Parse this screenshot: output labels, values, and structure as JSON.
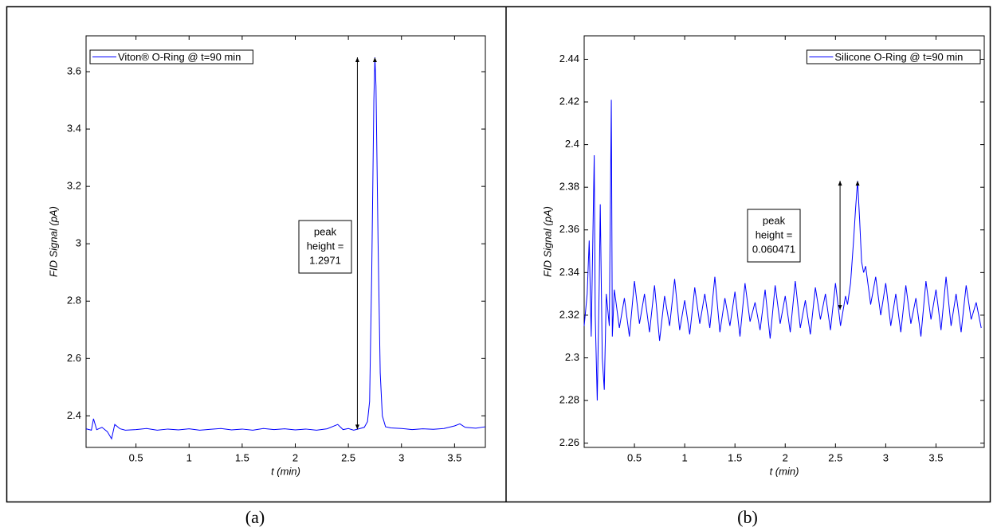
{
  "chart_data": [
    {
      "type": "line",
      "xlabel": "t (min)",
      "ylabel": "FID Signal (pA)",
      "legend": "upper-left",
      "xlim": [
        0.03,
        3.79
      ],
      "ylim": [
        2.29,
        3.725
      ],
      "xticks": [
        0.5,
        1,
        1.5,
        2,
        2.5,
        3,
        3.5
      ],
      "yticks": [
        2.4,
        2.6,
        2.8,
        3,
        3.2,
        3.4,
        3.6
      ],
      "x": [
        0.03,
        0.08,
        0.1,
        0.13,
        0.18,
        0.23,
        0.27,
        0.3,
        0.35,
        0.4,
        0.5,
        0.6,
        0.7,
        0.8,
        0.9,
        1.0,
        1.1,
        1.2,
        1.3,
        1.4,
        1.5,
        1.6,
        1.7,
        1.8,
        1.9,
        2.0,
        2.1,
        2.2,
        2.3,
        2.4,
        2.45,
        2.5,
        2.55,
        2.6,
        2.65,
        2.68,
        2.7,
        2.72,
        2.74,
        2.75,
        2.76,
        2.78,
        2.8,
        2.82,
        2.85,
        2.9,
        3.0,
        3.1,
        3.2,
        3.3,
        3.4,
        3.5,
        3.55,
        3.6,
        3.7,
        3.79
      ],
      "series": [
        {
          "name": "Viton® O-Ring @ t=90 min",
          "color": "#0000ff",
          "values": [
            2.355,
            2.35,
            2.39,
            2.352,
            2.36,
            2.345,
            2.32,
            2.37,
            2.355,
            2.35,
            2.352,
            2.356,
            2.35,
            2.354,
            2.351,
            2.355,
            2.35,
            2.353,
            2.356,
            2.351,
            2.354,
            2.35,
            2.356,
            2.352,
            2.355,
            2.351,
            2.354,
            2.35,
            2.355,
            2.37,
            2.352,
            2.356,
            2.35,
            2.355,
            2.36,
            2.38,
            2.45,
            2.9,
            3.5,
            3.65,
            3.55,
            3.0,
            2.55,
            2.4,
            2.362,
            2.358,
            2.356,
            2.352,
            2.355,
            2.353,
            2.356,
            2.365,
            2.372,
            2.36,
            2.357,
            2.362
          ]
        }
      ],
      "annotation": {
        "lines": [
          "peak",
          "height ="
        ],
        "value": 1.2971
      }
    },
    {
      "type": "line",
      "xlabel": "t (min)",
      "ylabel": "FID Signal (pA)",
      "legend": "upper-right",
      "xlim": [
        0,
        3.98
      ],
      "ylim": [
        2.258,
        2.451
      ],
      "xticks": [
        0.5,
        1,
        1.5,
        2,
        2.5,
        3,
        3.5
      ],
      "yticks": [
        2.26,
        2.28,
        2.3,
        2.32,
        2.34,
        2.36,
        2.38,
        2.4,
        2.42,
        2.44
      ],
      "x": [
        0,
        0.03,
        0.05,
        0.07,
        0.1,
        0.11,
        0.13,
        0.15,
        0.16,
        0.18,
        0.2,
        0.22,
        0.25,
        0.27,
        0.28,
        0.3,
        0.35,
        0.4,
        0.45,
        0.5,
        0.55,
        0.6,
        0.65,
        0.7,
        0.75,
        0.8,
        0.85,
        0.9,
        0.95,
        1,
        1.05,
        1.1,
        1.15,
        1.2,
        1.25,
        1.3,
        1.35,
        1.4,
        1.45,
        1.5,
        1.55,
        1.6,
        1.65,
        1.7,
        1.75,
        1.8,
        1.85,
        1.9,
        1.95,
        2,
        2.05,
        2.1,
        2.15,
        2.2,
        2.25,
        2.3,
        2.35,
        2.4,
        2.45,
        2.5,
        2.55,
        2.6,
        2.62,
        2.65,
        2.68,
        2.7,
        2.72,
        2.74,
        2.76,
        2.78,
        2.8,
        2.85,
        2.9,
        2.95,
        3,
        3.05,
        3.1,
        3.15,
        3.2,
        3.25,
        3.3,
        3.35,
        3.4,
        3.45,
        3.5,
        3.55,
        3.6,
        3.65,
        3.7,
        3.75,
        3.8,
        3.85,
        3.9,
        3.95
      ],
      "series": [
        {
          "name": "Silicone O-Ring @ t=90 min",
          "color": "#0000ff",
          "values": [
            2.315,
            2.33,
            2.355,
            2.31,
            2.395,
            2.32,
            2.28,
            2.335,
            2.372,
            2.3,
            2.285,
            2.33,
            2.315,
            2.421,
            2.31,
            2.332,
            2.314,
            2.328,
            2.31,
            2.336,
            2.316,
            2.33,
            2.312,
            2.334,
            2.308,
            2.329,
            2.315,
            2.337,
            2.313,
            2.327,
            2.311,
            2.333,
            2.316,
            2.33,
            2.314,
            2.338,
            2.312,
            2.328,
            2.315,
            2.331,
            2.31,
            2.335,
            2.317,
            2.326,
            2.313,
            2.332,
            2.309,
            2.334,
            2.316,
            2.329,
            2.312,
            2.336,
            2.314,
            2.327,
            2.311,
            2.333,
            2.318,
            2.33,
            2.313,
            2.335,
            2.315,
            2.329,
            2.325,
            2.335,
            2.355,
            2.37,
            2.383,
            2.365,
            2.345,
            2.34,
            2.343,
            2.325,
            2.338,
            2.32,
            2.335,
            2.315,
            2.33,
            2.312,
            2.334,
            2.316,
            2.328,
            2.31,
            2.336,
            2.318,
            2.332,
            2.313,
            2.338,
            2.315,
            2.33,
            2.312,
            2.334,
            2.318,
            2.326,
            2.314
          ]
        }
      ],
      "annotation": {
        "lines": [
          "peak",
          "height ="
        ],
        "value": 0.060471
      }
    }
  ],
  "captions": [
    "(a)",
    "(b)"
  ]
}
